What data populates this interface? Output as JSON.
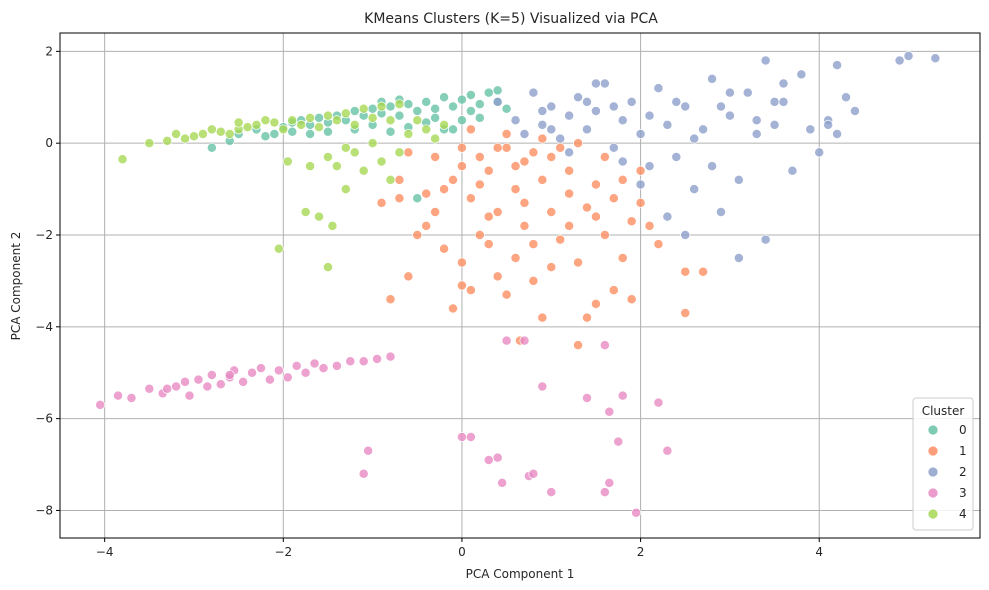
{
  "chart_data": {
    "type": "scatter",
    "title": "KMeans Clusters (K=5) Visualized via PCA",
    "xlabel": "PCA Component 1",
    "ylabel": "PCA Component 2",
    "xlim": [
      -4.5,
      5.8
    ],
    "ylim": [
      -8.6,
      2.4
    ],
    "xticks": [
      -4,
      -2,
      0,
      2,
      4
    ],
    "yticks": [
      -8,
      -6,
      -4,
      -2,
      0,
      2
    ],
    "xtick_labels": [
      "−4",
      "−2",
      "0",
      "2",
      "4"
    ],
    "ytick_labels": [
      "−8",
      "−6",
      "−4",
      "−2",
      "0",
      "2"
    ],
    "grid": true,
    "legend": {
      "title": "Cluster",
      "placement": "lower-right"
    },
    "series": [
      {
        "name": "0",
        "color": "#66c2a5",
        "points": [
          [
            -2.8,
            -0.1
          ],
          [
            -2.6,
            0.05
          ],
          [
            -2.5,
            0.2
          ],
          [
            -2.3,
            0.3
          ],
          [
            -2.2,
            0.15
          ],
          [
            -2.0,
            0.35
          ],
          [
            -1.9,
            0.25
          ],
          [
            -1.8,
            0.5
          ],
          [
            -1.7,
            0.4
          ],
          [
            -1.6,
            0.55
          ],
          [
            -1.5,
            0.45
          ],
          [
            -1.4,
            0.6
          ],
          [
            -1.3,
            0.5
          ],
          [
            -1.2,
            0.7
          ],
          [
            -1.1,
            0.6
          ],
          [
            -1.0,
            0.75
          ],
          [
            -0.9,
            0.65
          ],
          [
            -0.8,
            0.8
          ],
          [
            -0.7,
            0.6
          ],
          [
            -0.6,
            0.85
          ],
          [
            -0.5,
            0.7
          ],
          [
            -0.4,
            0.9
          ],
          [
            -0.3,
            0.75
          ],
          [
            -0.2,
            1.0
          ],
          [
            -0.1,
            0.8
          ],
          [
            0.0,
            0.95
          ],
          [
            0.1,
            0.7
          ],
          [
            0.2,
            0.85
          ],
          [
            0.3,
            1.1
          ],
          [
            0.4,
            0.9
          ],
          [
            0.5,
            0.75
          ],
          [
            0.4,
            1.15
          ],
          [
            -0.6,
            0.35
          ],
          [
            -0.4,
            0.45
          ],
          [
            -0.2,
            0.3
          ],
          [
            0.0,
            0.5
          ],
          [
            -0.8,
            0.25
          ],
          [
            -1.0,
            0.4
          ],
          [
            -1.5,
            0.25
          ],
          [
            -1.9,
            0.45
          ],
          [
            -2.1,
            0.2
          ],
          [
            -0.3,
            0.55
          ],
          [
            -0.7,
            0.95
          ],
          [
            0.2,
            0.55
          ],
          [
            -0.5,
            -1.2
          ],
          [
            -0.9,
            0.9
          ],
          [
            0.1,
            1.05
          ],
          [
            -1.2,
            0.3
          ],
          [
            -1.7,
            0.2
          ],
          [
            -0.1,
            0.3
          ]
        ]
      },
      {
        "name": "1",
        "color": "#fc8d62",
        "points": [
          [
            -0.9,
            -1.3
          ],
          [
            -0.7,
            -1.2
          ],
          [
            -0.8,
            -3.4
          ],
          [
            -0.6,
            -2.9
          ],
          [
            -0.5,
            -2.0
          ],
          [
            -0.4,
            -1.8
          ],
          [
            -0.3,
            -1.5
          ],
          [
            -0.2,
            -1.0
          ],
          [
            -0.1,
            -0.8
          ],
          [
            0.0,
            -0.5
          ],
          [
            0.0,
            -2.6
          ],
          [
            -0.1,
            -3.6
          ],
          [
            0.1,
            -3.2
          ],
          [
            0.1,
            -1.2
          ],
          [
            0.2,
            -0.3
          ],
          [
            0.3,
            -0.6
          ],
          [
            0.3,
            -2.2
          ],
          [
            0.4,
            -1.5
          ],
          [
            0.4,
            -2.9
          ],
          [
            0.5,
            -0.1
          ],
          [
            0.5,
            -3.3
          ],
          [
            0.6,
            -1.0
          ],
          [
            0.6,
            -2.5
          ],
          [
            0.7,
            -0.4
          ],
          [
            0.7,
            -1.8
          ],
          [
            0.8,
            -2.2
          ],
          [
            0.8,
            -3.0
          ],
          [
            0.9,
            -0.8
          ],
          [
            0.9,
            -3.8
          ],
          [
            1.0,
            -0.3
          ],
          [
            1.0,
            -1.5
          ],
          [
            1.1,
            -2.1
          ],
          [
            1.2,
            -0.6
          ],
          [
            1.2,
            -1.1
          ],
          [
            1.3,
            -2.6
          ],
          [
            1.3,
            -4.4
          ],
          [
            1.4,
            -1.4
          ],
          [
            1.4,
            -3.8
          ],
          [
            1.5,
            -0.9
          ],
          [
            1.5,
            -3.5
          ],
          [
            1.6,
            -2.0
          ],
          [
            1.7,
            -1.2
          ],
          [
            1.7,
            -3.2
          ],
          [
            1.8,
            -2.5
          ],
          [
            1.9,
            -1.7
          ],
          [
            1.9,
            -3.4
          ],
          [
            2.0,
            -1.3
          ],
          [
            2.0,
            -0.6
          ],
          [
            2.2,
            -2.2
          ],
          [
            2.5,
            -2.8
          ],
          [
            2.5,
            -3.7
          ],
          [
            2.7,
            -2.8
          ],
          [
            0.4,
            -0.1
          ],
          [
            0.6,
            -0.5
          ],
          [
            0.2,
            -0.9
          ],
          [
            0.8,
            -0.2
          ],
          [
            1.1,
            -0.1
          ],
          [
            -0.6,
            -0.2
          ],
          [
            -0.3,
            -0.3
          ],
          [
            0.0,
            -0.1
          ],
          [
            1.6,
            -0.3
          ],
          [
            0.1,
            0.3
          ],
          [
            0.5,
            0.2
          ],
          [
            0.9,
            0.1
          ],
          [
            1.3,
            0.0
          ],
          [
            -0.2,
            -2.3
          ],
          [
            0.0,
            -3.1
          ],
          [
            0.65,
            -4.3
          ],
          [
            -0.4,
            -1.1
          ],
          [
            0.3,
            -1.6
          ],
          [
            1.0,
            -2.7
          ],
          [
            1.5,
            -1.6
          ],
          [
            0.7,
            -1.3
          ],
          [
            1.2,
            -1.8
          ],
          [
            0.2,
            -2.0
          ],
          [
            -0.7,
            -0.8
          ],
          [
            1.8,
            -0.8
          ],
          [
            2.1,
            -1.8
          ]
        ]
      },
      {
        "name": "2",
        "color": "#8da0cb",
        "points": [
          [
            0.4,
            0.9
          ],
          [
            0.6,
            0.5
          ],
          [
            0.7,
            0.2
          ],
          [
            0.8,
            1.1
          ],
          [
            0.9,
            0.4
          ],
          [
            1.0,
            0.8
          ],
          [
            1.1,
            0.1
          ],
          [
            1.2,
            0.6
          ],
          [
            1.3,
            1.0
          ],
          [
            1.4,
            0.3
          ],
          [
            1.5,
            0.7
          ],
          [
            1.6,
            1.3
          ],
          [
            1.7,
            -0.1
          ],
          [
            1.8,
            0.5
          ],
          [
            1.9,
            0.9
          ],
          [
            2.0,
            0.2
          ],
          [
            2.1,
            -0.5
          ],
          [
            2.2,
            1.2
          ],
          [
            2.3,
            0.4
          ],
          [
            2.4,
            -0.3
          ],
          [
            2.5,
            0.8
          ],
          [
            2.6,
            -1.0
          ],
          [
            2.7,
            0.3
          ],
          [
            2.8,
            1.4
          ],
          [
            2.9,
            -1.5
          ],
          [
            3.0,
            0.6
          ],
          [
            3.1,
            -0.8
          ],
          [
            3.2,
            1.1
          ],
          [
            3.3,
            0.2
          ],
          [
            3.4,
            1.8
          ],
          [
            3.5,
            0.9
          ],
          [
            3.6,
            1.3
          ],
          [
            3.7,
            -0.6
          ],
          [
            3.8,
            1.5
          ],
          [
            3.9,
            0.3
          ],
          [
            4.0,
            -0.2
          ],
          [
            4.1,
            0.5
          ],
          [
            4.2,
            1.7
          ],
          [
            4.3,
            1.0
          ],
          [
            4.4,
            0.7
          ],
          [
            4.9,
            1.8
          ],
          [
            5.0,
            1.9
          ],
          [
            5.3,
            1.85
          ],
          [
            3.1,
            -2.5
          ],
          [
            3.4,
            -2.1
          ],
          [
            2.5,
            -2.0
          ],
          [
            2.3,
            -1.6
          ],
          [
            2.0,
            -0.9
          ],
          [
            2.8,
            -0.5
          ],
          [
            1.5,
            1.3
          ],
          [
            1.0,
            0.3
          ],
          [
            1.2,
            -0.2
          ],
          [
            1.8,
            -0.4
          ],
          [
            2.1,
            0.6
          ],
          [
            2.4,
            0.9
          ],
          [
            2.6,
            0.1
          ],
          [
            3.0,
            1.1
          ],
          [
            3.3,
            0.5
          ],
          [
            3.5,
            0.4
          ],
          [
            3.6,
            0.9
          ],
          [
            4.1,
            0.4
          ],
          [
            4.2,
            0.2
          ],
          [
            0.9,
            0.7
          ],
          [
            1.4,
            0.9
          ],
          [
            1.7,
            0.8
          ],
          [
            2.9,
            0.8
          ]
        ]
      },
      {
        "name": "3",
        "color": "#e78ac3",
        "points": [
          [
            -4.05,
            -5.7
          ],
          [
            -3.85,
            -5.5
          ],
          [
            -3.7,
            -5.55
          ],
          [
            -3.5,
            -5.35
          ],
          [
            -3.35,
            -5.45
          ],
          [
            -3.2,
            -5.3
          ],
          [
            -3.1,
            -5.2
          ],
          [
            -3.05,
            -5.5
          ],
          [
            -2.95,
            -5.15
          ],
          [
            -2.85,
            -5.3
          ],
          [
            -2.8,
            -5.05
          ],
          [
            -2.7,
            -5.25
          ],
          [
            -2.6,
            -5.1
          ],
          [
            -2.55,
            -4.95
          ],
          [
            -2.45,
            -5.2
          ],
          [
            -2.35,
            -5.0
          ],
          [
            -2.25,
            -4.9
          ],
          [
            -2.15,
            -5.15
          ],
          [
            -2.05,
            -4.95
          ],
          [
            -1.95,
            -5.1
          ],
          [
            -1.85,
            -4.85
          ],
          [
            -1.75,
            -5.0
          ],
          [
            -1.65,
            -4.8
          ],
          [
            -1.55,
            -4.9
          ],
          [
            -1.4,
            -4.85
          ],
          [
            -1.25,
            -4.75
          ],
          [
            -1.1,
            -4.75
          ],
          [
            -0.95,
            -4.7
          ],
          [
            -0.8,
            -4.65
          ],
          [
            -1.05,
            -6.7
          ],
          [
            -1.1,
            -7.2
          ],
          [
            0.0,
            -6.4
          ],
          [
            0.1,
            -6.4
          ],
          [
            0.3,
            -6.9
          ],
          [
            0.4,
            -6.85
          ],
          [
            0.45,
            -7.4
          ],
          [
            0.5,
            -4.3
          ],
          [
            0.7,
            -4.3
          ],
          [
            0.75,
            -7.25
          ],
          [
            0.8,
            -7.2
          ],
          [
            0.9,
            -5.3
          ],
          [
            1.0,
            -7.6
          ],
          [
            1.4,
            -5.55
          ],
          [
            1.6,
            -4.4
          ],
          [
            1.6,
            -7.6
          ],
          [
            1.65,
            -5.85
          ],
          [
            1.65,
            -7.4
          ],
          [
            1.75,
            -6.5
          ],
          [
            1.8,
            -5.5
          ],
          [
            1.95,
            -8.05
          ],
          [
            2.2,
            -5.65
          ],
          [
            2.3,
            -6.7
          ],
          [
            -2.6,
            -5.05
          ],
          [
            -3.3,
            -5.35
          ]
        ]
      },
      {
        "name": "4",
        "color": "#a6d854",
        "points": [
          [
            -3.8,
            -0.35
          ],
          [
            -3.5,
            0.0
          ],
          [
            -3.3,
            0.05
          ],
          [
            -3.1,
            0.1
          ],
          [
            -2.9,
            0.2
          ],
          [
            -2.7,
            0.25
          ],
          [
            -2.5,
            0.3
          ],
          [
            -2.3,
            0.4
          ],
          [
            -2.1,
            0.45
          ],
          [
            -1.9,
            0.5
          ],
          [
            -1.7,
            0.55
          ],
          [
            -1.5,
            0.6
          ],
          [
            -1.3,
            0.65
          ],
          [
            -1.1,
            0.75
          ],
          [
            -0.9,
            0.8
          ],
          [
            -0.7,
            0.85
          ],
          [
            -3.0,
            0.15
          ],
          [
            -2.8,
            0.3
          ],
          [
            -2.6,
            0.2
          ],
          [
            -2.4,
            0.35
          ],
          [
            -2.2,
            0.5
          ],
          [
            -2.0,
            0.3
          ],
          [
            -1.8,
            0.4
          ],
          [
            -1.6,
            0.35
          ],
          [
            -1.4,
            0.5
          ],
          [
            -1.2,
            0.4
          ],
          [
            -1.0,
            0.55
          ],
          [
            -0.8,
            0.5
          ],
          [
            -1.5,
            -0.3
          ],
          [
            -1.4,
            -0.5
          ],
          [
            -1.2,
            -0.2
          ],
          [
            -1.1,
            -0.6
          ],
          [
            -1.0,
            0.0
          ],
          [
            -0.9,
            -0.4
          ],
          [
            -0.8,
            -0.8
          ],
          [
            -0.7,
            -0.2
          ],
          [
            -0.6,
            0.2
          ],
          [
            -1.3,
            -1.0
          ],
          [
            -1.45,
            -1.8
          ],
          [
            -1.6,
            -1.6
          ],
          [
            -1.75,
            -1.5
          ],
          [
            -1.5,
            -2.7
          ],
          [
            -2.05,
            -2.3
          ],
          [
            -1.95,
            -0.4
          ],
          [
            -1.7,
            -0.5
          ],
          [
            -1.3,
            -0.1
          ],
          [
            -0.5,
            0.5
          ],
          [
            -0.4,
            0.3
          ],
          [
            -2.5,
            0.45
          ],
          [
            -3.2,
            0.2
          ],
          [
            -0.3,
            0.1
          ],
          [
            -0.2,
            0.4
          ]
        ]
      }
    ]
  }
}
